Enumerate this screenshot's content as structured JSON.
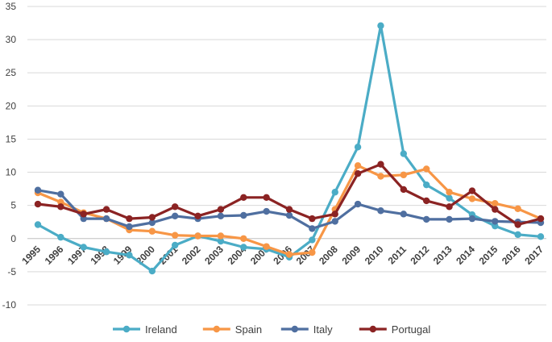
{
  "chart_data": {
    "type": "line",
    "title": "",
    "xlabel": "",
    "ylabel": "",
    "ylim": [
      -10,
      35
    ],
    "yticks": [
      -10,
      -5,
      0,
      5,
      10,
      15,
      20,
      25,
      30,
      35
    ],
    "grid": "horizontal",
    "legend_position": "bottom",
    "categories": [
      "1995",
      "1996",
      "1997",
      "1998",
      "1999",
      "2000",
      "2001",
      "2002",
      "2003",
      "2004",
      "2005",
      "2006",
      "2007",
      "2008",
      "2009",
      "2010",
      "2011",
      "2012",
      "2013",
      "2014",
      "2015",
      "2016",
      "2017"
    ],
    "series": [
      {
        "name": "Ireland",
        "color": "#4bacc6",
        "values": [
          2.1,
          0.2,
          -1.3,
          -2.0,
          -2.5,
          -4.9,
          -1.0,
          0.4,
          -0.4,
          -1.3,
          -1.6,
          -2.8,
          -0.2,
          7.0,
          13.8,
          32.1,
          12.8,
          8.1,
          6.1,
          3.6,
          1.9,
          0.6,
          0.3
        ]
      },
      {
        "name": "Spain",
        "color": "#f79646",
        "values": [
          6.9,
          5.5,
          3.9,
          3.0,
          1.3,
          1.1,
          0.5,
          0.4,
          0.4,
          0.0,
          -1.2,
          -2.4,
          -2.1,
          4.4,
          11.0,
          9.4,
          9.6,
          10.5,
          7.0,
          6.0,
          5.3,
          4.5,
          3.0
        ]
      },
      {
        "name": "Italy",
        "color": "#4f6fa0",
        "values": [
          7.3,
          6.7,
          3.0,
          3.0,
          1.8,
          2.4,
          3.4,
          3.0,
          3.4,
          3.5,
          4.1,
          3.5,
          1.5,
          2.6,
          5.2,
          4.2,
          3.7,
          2.9,
          2.9,
          3.0,
          2.6,
          2.5,
          2.4
        ]
      },
      {
        "name": "Portugal",
        "color": "#8b2323",
        "values": [
          5.2,
          4.8,
          3.7,
          4.4,
          3.0,
          3.2,
          4.8,
          3.4,
          4.4,
          6.2,
          6.2,
          4.4,
          3.0,
          3.7,
          9.8,
          11.2,
          7.4,
          5.7,
          4.8,
          7.2,
          4.4,
          2.1,
          3.0
        ]
      }
    ]
  }
}
